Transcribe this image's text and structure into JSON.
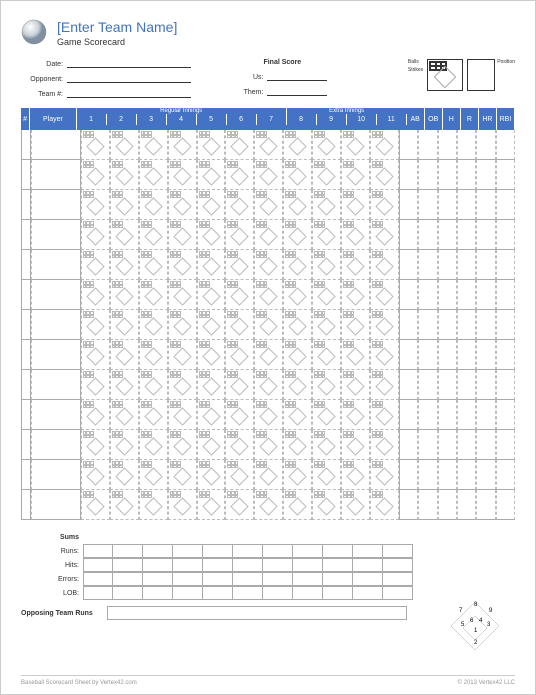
{
  "title": "[Enter Team Name]",
  "subtitle": "Game Scorecard",
  "info_labels": {
    "date": "Date:",
    "opponent": "Opponent:",
    "team_num": "Team #:",
    "final_score": "Final Score",
    "us": "Us:",
    "them": "Them:"
  },
  "legend": {
    "balls": "Balls",
    "strikes": "Strikes",
    "position": "Position"
  },
  "header": {
    "num": "#",
    "player": "Player",
    "regular": "Regular Innings",
    "extra": "Extra Innings",
    "innings": [
      "1",
      "2",
      "3",
      "4",
      "5",
      "6",
      "7",
      "8",
      "9",
      "10",
      "11"
    ],
    "stats": [
      "AB",
      "OB",
      "H",
      "R",
      "HR",
      "RBI"
    ]
  },
  "rows": 13,
  "summary": {
    "title": "Sums",
    "labels": [
      "Runs:",
      "Hits:",
      "Errors:",
      "LOB:"
    ],
    "opposing": "Opposing Team Runs"
  },
  "field_positions": [
    "7",
    "8",
    "9",
    "5",
    "6",
    "4",
    "3",
    "1",
    "2"
  ],
  "footer": {
    "left": "Baseball Scorecard Sheet by Vertex42.com",
    "right": "© 2013 Vertex42 LLC"
  },
  "colors": {
    "header_bg": "#4472c4",
    "border": "#aaaaaa",
    "dashed": "#bbbbbb"
  }
}
